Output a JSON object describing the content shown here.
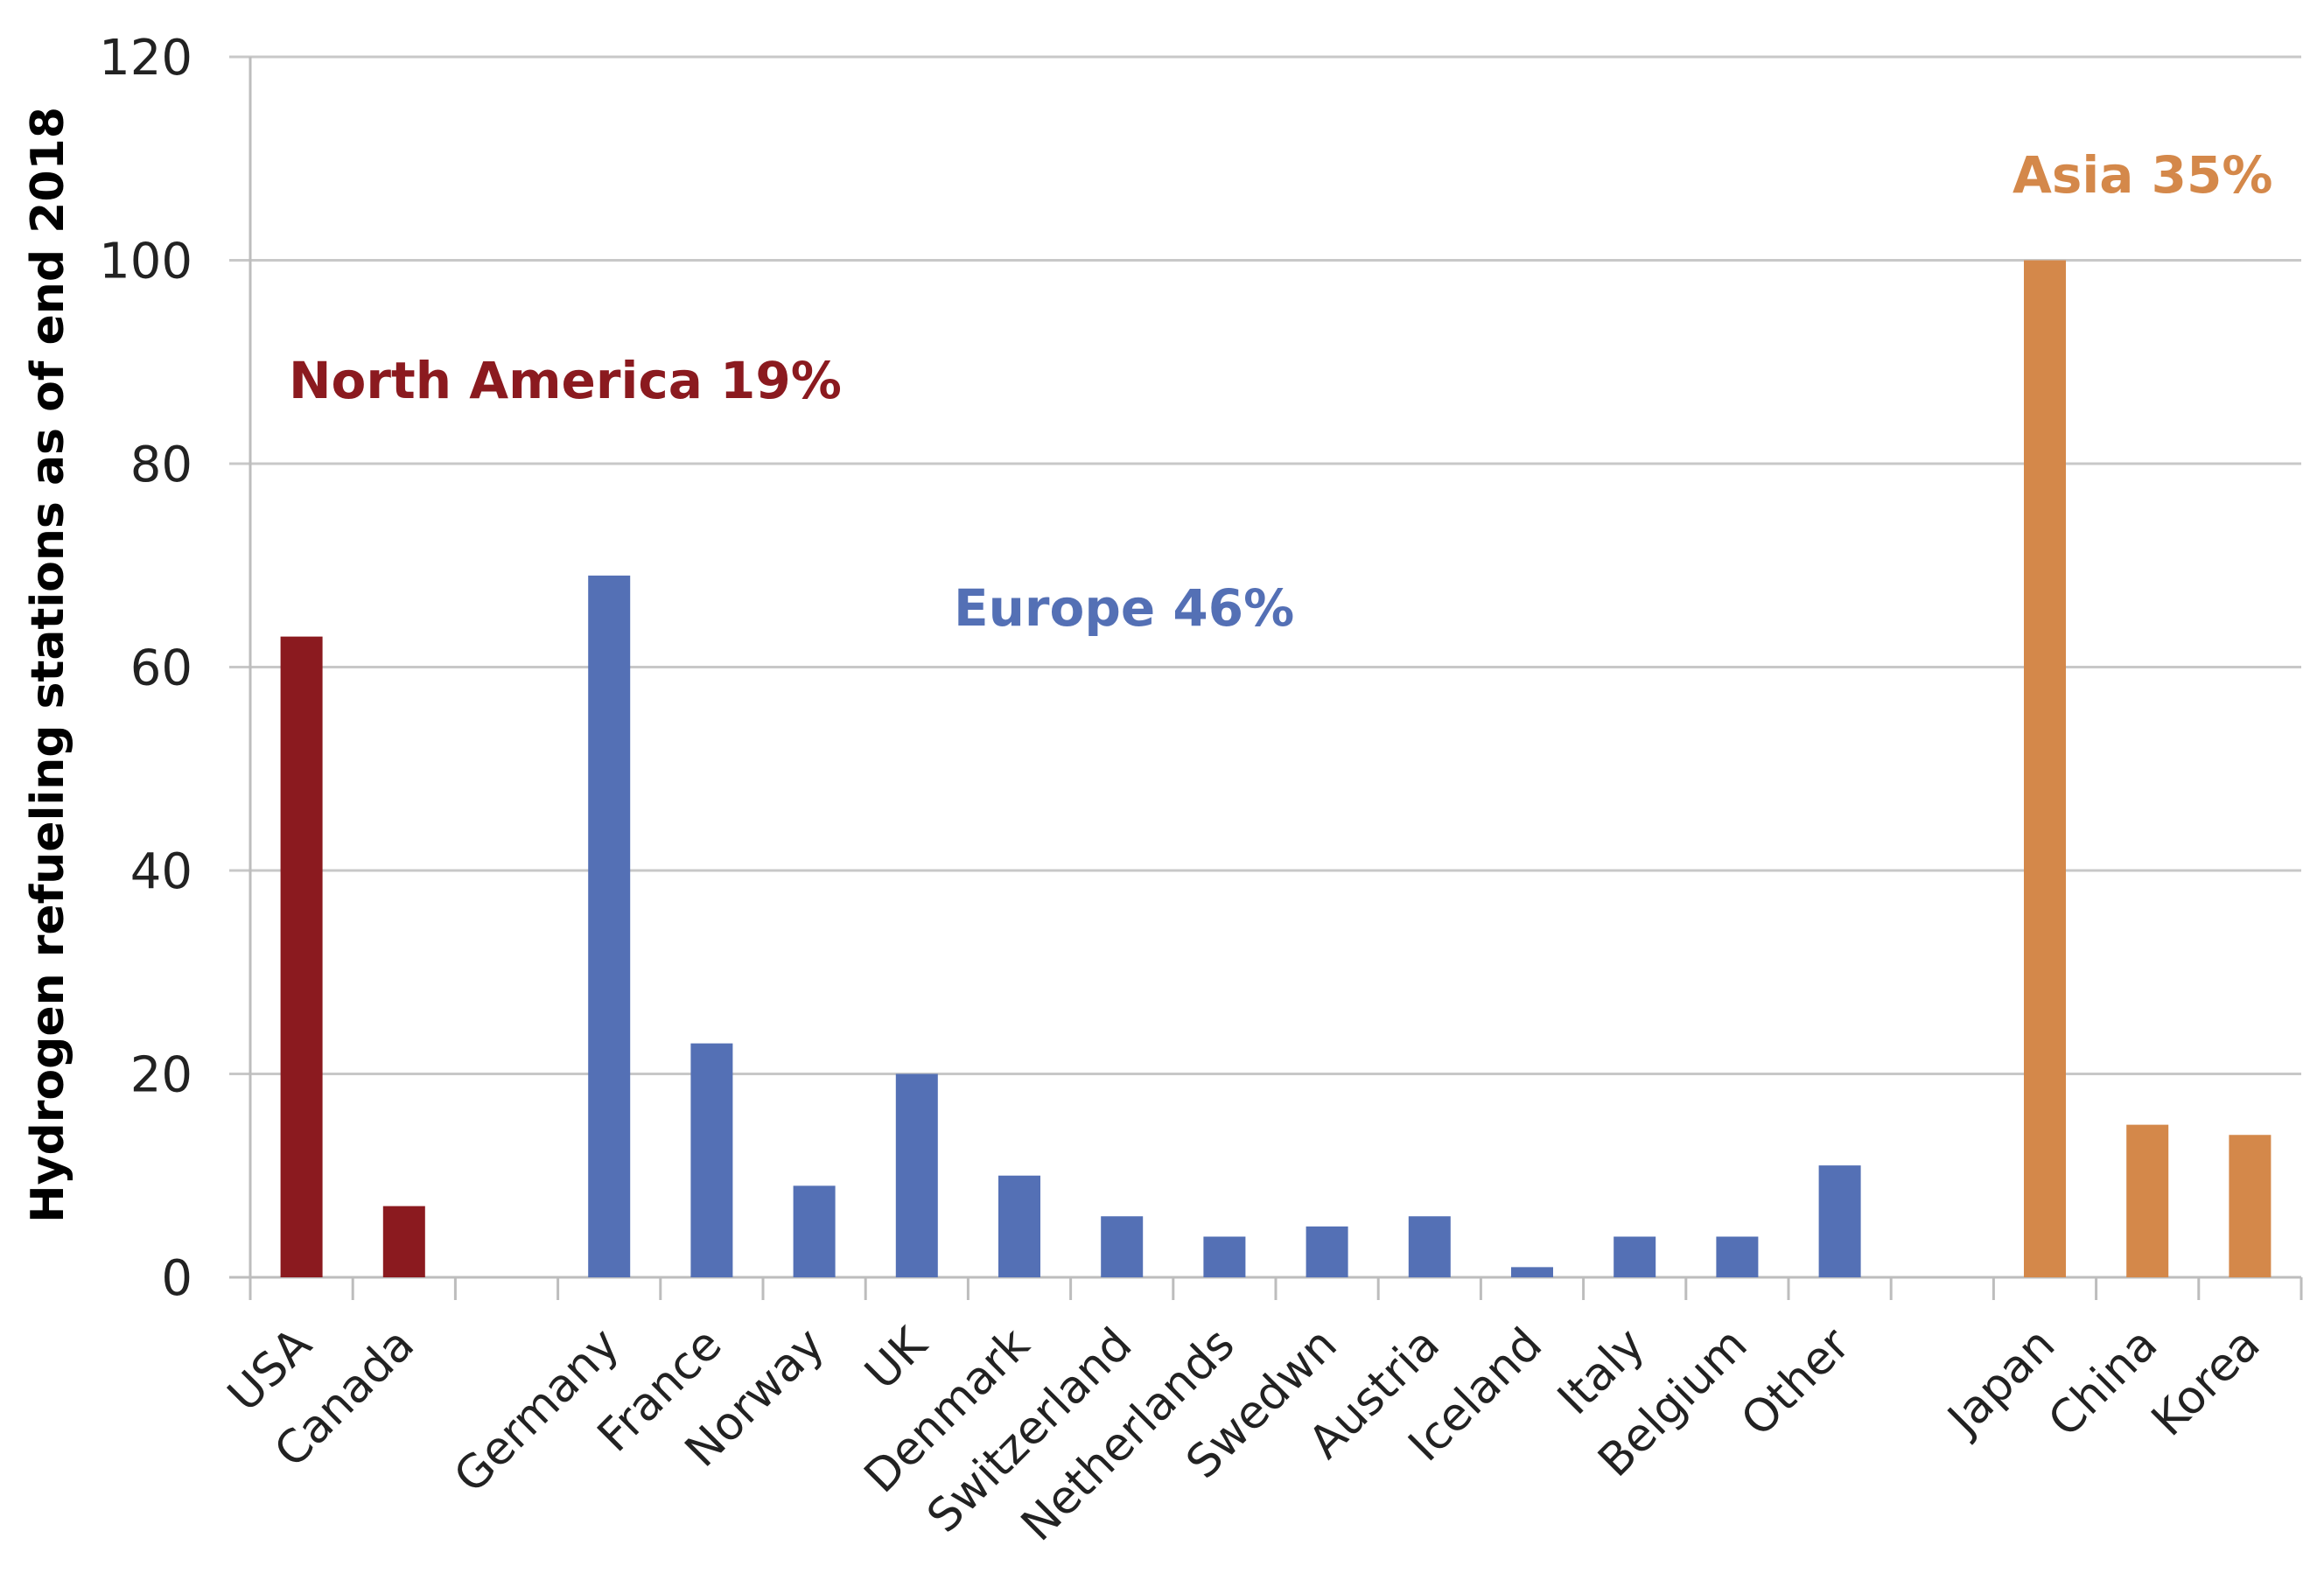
{
  "chart_data": {
    "type": "bar",
    "ylabel": "Hydrogen refueling stations as of end 2018",
    "ylim": [
      0,
      120
    ],
    "yticks": [
      0,
      20,
      40,
      60,
      80,
      100,
      120
    ],
    "grid": true,
    "categories": [
      "USA",
      "Canada",
      "",
      "Germany",
      "France",
      "Norway",
      "UK",
      "Denmark",
      "Switzerland",
      "Netherlands",
      "Swedwn",
      "Austria",
      "Iceland",
      "Italy",
      "Belgium",
      "Other",
      "",
      "Japan",
      "China",
      "Korea"
    ],
    "values": [
      63,
      7,
      null,
      69,
      23,
      9,
      20,
      10,
      6,
      4,
      5,
      6,
      1,
      4,
      4,
      11,
      null,
      100,
      15,
      14
    ],
    "groups": [
      {
        "label": "North America 19%",
        "color": "#8b1a1f",
        "start": 0,
        "end": 1
      },
      {
        "label": "Europe 46%",
        "color": "#5470b5",
        "start": 3,
        "end": 15
      },
      {
        "label": "Asia 35%",
        "color": "#d4884a",
        "start": 17,
        "end": 19
      }
    ]
  }
}
